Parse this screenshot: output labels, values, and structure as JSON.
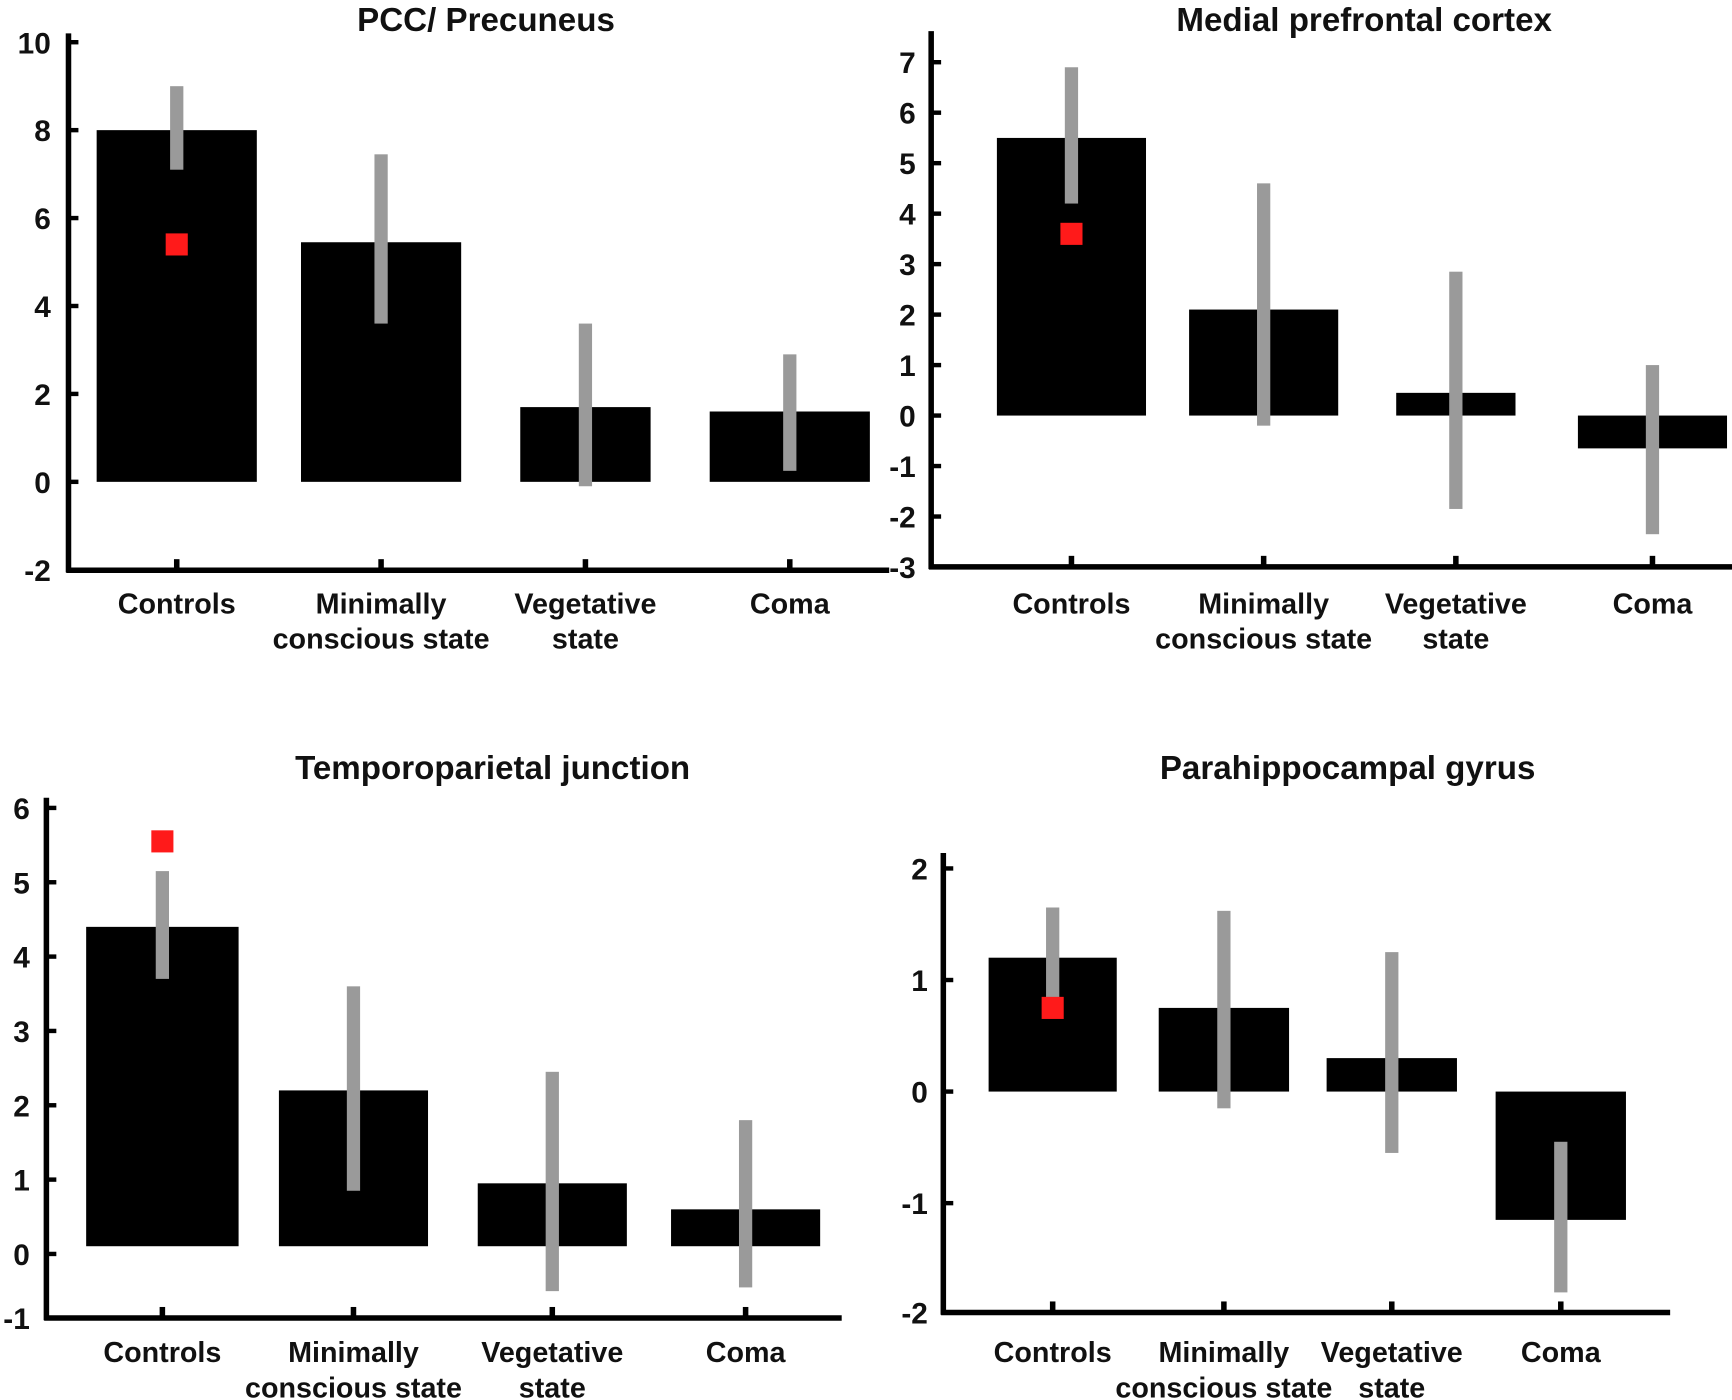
{
  "colors": {
    "bar": "#000000",
    "error": "#9a9a9a",
    "marker": "#ff1a1a",
    "axis": "#000000"
  },
  "chart_data": [
    {
      "type": "bar",
      "title": "PCC/ Precuneus",
      "categories": [
        "Controls",
        "Minimally conscious state",
        "Vegetative state",
        "Coma"
      ],
      "category_lines": [
        [
          "Controls"
        ],
        [
          "Minimally",
          "conscious state"
        ],
        [
          "Vegetative",
          "state"
        ],
        [
          "Coma"
        ]
      ],
      "values": [
        8.0,
        5.45,
        1.7,
        1.6
      ],
      "error_low": [
        7.1,
        3.6,
        -0.1,
        0.25
      ],
      "error_high": [
        9.0,
        7.45,
        3.6,
        2.9
      ],
      "marker": {
        "category": "Controls",
        "value": 5.4
      },
      "ylim": [
        -2,
        10
      ],
      "yticks": [
        -2,
        0,
        2,
        4,
        6,
        8,
        10
      ],
      "xlabel": "",
      "ylabel": "",
      "grid": false
    },
    {
      "type": "bar",
      "title": "Medial prefrontal cortex",
      "categories": [
        "Controls",
        "Minimally conscious state",
        "Vegetative state",
        "Coma"
      ],
      "category_lines": [
        [
          "Controls"
        ],
        [
          "Minimally",
          "conscious state"
        ],
        [
          "Vegetative",
          "state"
        ],
        [
          "Coma"
        ]
      ],
      "values": [
        5.5,
        2.1,
        0.45,
        -0.65
      ],
      "error_low": [
        4.2,
        -0.2,
        -1.85,
        -2.35
      ],
      "error_high": [
        6.9,
        4.6,
        2.85,
        1.0
      ],
      "marker": {
        "category": "Controls",
        "value": 3.6
      },
      "ylim": [
        -3,
        7
      ],
      "yticks": [
        -3,
        -2,
        -1,
        0,
        1,
        2,
        3,
        4,
        5,
        6,
        7
      ],
      "xlabel": "",
      "ylabel": "",
      "grid": false
    },
    {
      "type": "bar",
      "title": "Temporoparietal junction",
      "categories": [
        "Controls",
        "Minimally conscious state",
        "Vegetative state",
        "Coma"
      ],
      "category_lines": [
        [
          "Controls"
        ],
        [
          "Minimally",
          "conscious state"
        ],
        [
          "Vegetative",
          "state"
        ],
        [
          "Coma"
        ]
      ],
      "values": [
        4.4,
        2.2,
        0.95,
        0.6
      ],
      "error_low": [
        3.7,
        0.85,
        -0.5,
        -0.45
      ],
      "error_high": [
        5.15,
        3.6,
        2.45,
        1.8
      ],
      "marker": {
        "category": "Controls",
        "value": 5.55
      },
      "ylim": [
        -1,
        6
      ],
      "yticks": [
        -1,
        0,
        1,
        2,
        3,
        4,
        5,
        6
      ],
      "xlabel": "",
      "ylabel": "",
      "grid": false
    },
    {
      "type": "bar",
      "title": "Parahippocampal gyrus",
      "categories": [
        "Controls",
        "Minimally conscious state",
        "Vegetative state",
        "Coma"
      ],
      "category_lines": [
        [
          "Controls"
        ],
        [
          "Minimally",
          "conscious state"
        ],
        [
          "Vegetative",
          "state"
        ],
        [
          "Coma"
        ]
      ],
      "values": [
        1.2,
        0.75,
        0.3,
        -1.15
      ],
      "error_low": [
        0.75,
        -0.15,
        -0.55,
        -1.8
      ],
      "error_high": [
        1.65,
        1.62,
        1.25,
        -0.45
      ],
      "marker": {
        "category": "Controls",
        "value": 0.75
      },
      "ylim": [
        -2,
        2
      ],
      "yticks": [
        -2,
        -1,
        0,
        1,
        2
      ],
      "xlabel": "",
      "ylabel": "",
      "grid": false
    }
  ]
}
